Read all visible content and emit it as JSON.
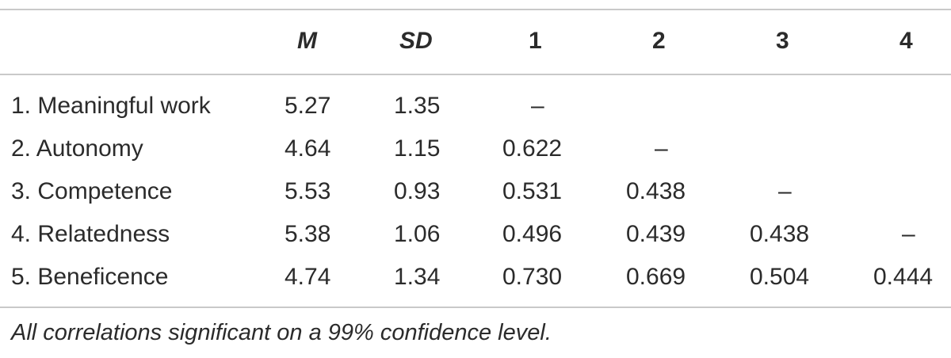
{
  "table": {
    "header": {
      "label": "",
      "m": "M",
      "sd": "SD",
      "c1": "1",
      "c2": "2",
      "c3": "3",
      "c4": "4"
    },
    "rows": [
      {
        "label": "1. Meaningful work",
        "m": "5.27",
        "sd": "1.35",
        "c1": "–",
        "c2": "",
        "c3": "",
        "c4": ""
      },
      {
        "label": "2. Autonomy",
        "m": "4.64",
        "sd": "1.15",
        "c1": "0.622",
        "c2": "–",
        "c3": "",
        "c4": ""
      },
      {
        "label": "3. Competence",
        "m": "5.53",
        "sd": "0.93",
        "c1": "0.531",
        "c2": "0.438",
        "c3": "–",
        "c4": ""
      },
      {
        "label": "4. Relatedness",
        "m": "5.38",
        "sd": "1.06",
        "c1": "0.496",
        "c2": "0.439",
        "c3": "0.438",
        "c4": "–"
      },
      {
        "label": "5. Beneficence",
        "m": "4.74",
        "sd": "1.34",
        "c1": "0.730",
        "c2": "0.669",
        "c3": "0.504",
        "c4": "0.444"
      }
    ],
    "footnote": "All correlations significant on a 99% confidence level."
  }
}
